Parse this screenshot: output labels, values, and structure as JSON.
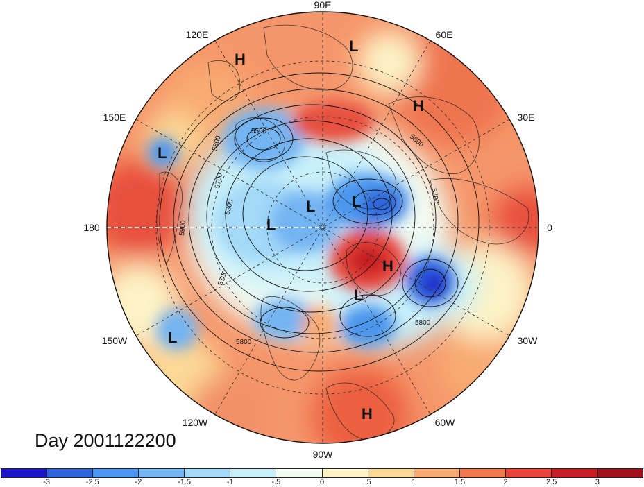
{
  "title": "Day 2001122200",
  "longitude_labels": [
    {
      "id": "lon-90e",
      "text": "90E"
    },
    {
      "id": "lon-120e",
      "text": "120E"
    },
    {
      "id": "lon-60e",
      "text": "60E"
    },
    {
      "id": "lon-150e",
      "text": "150E"
    },
    {
      "id": "lon-30e",
      "text": "30E"
    },
    {
      "id": "lon-180",
      "text": "180"
    },
    {
      "id": "lon-0",
      "text": "0"
    },
    {
      "id": "lon-150w",
      "text": "150W"
    },
    {
      "id": "lon-30w",
      "text": "30W"
    },
    {
      "id": "lon-120w",
      "text": "120W"
    },
    {
      "id": "lon-60w",
      "text": "60W"
    },
    {
      "id": "lon-90w",
      "text": "90W"
    }
  ],
  "pressure_centers": [
    {
      "id": "h-siberia",
      "text": "H"
    },
    {
      "id": "l-arctic-east",
      "text": "L"
    },
    {
      "id": "h-europe-east",
      "text": "H"
    },
    {
      "id": "l-pacific-west",
      "text": "L"
    },
    {
      "id": "l-polar-1",
      "text": "L"
    },
    {
      "id": "l-polar-2",
      "text": "L"
    },
    {
      "id": "l-polar-3",
      "text": "L"
    },
    {
      "id": "h-greenland",
      "text": "H"
    },
    {
      "id": "l-atlantic",
      "text": "L"
    },
    {
      "id": "l-pacific-east",
      "text": "L"
    },
    {
      "id": "h-south-america",
      "text": "H"
    }
  ],
  "contour_labels": [
    {
      "id": "c5500",
      "text": "5500"
    },
    {
      "id": "c5800a",
      "text": "5800"
    },
    {
      "id": "c5700a",
      "text": "5700"
    },
    {
      "id": "c5300",
      "text": "5300"
    },
    {
      "id": "c5900",
      "text": "5900"
    },
    {
      "id": "c5700b",
      "text": "5700"
    },
    {
      "id": "c5800b",
      "text": "5800"
    },
    {
      "id": "c5800c",
      "text": "5800"
    },
    {
      "id": "c5800d",
      "text": "5800"
    },
    {
      "id": "c5700c",
      "text": "5700"
    }
  ],
  "colorbar": {
    "colors": [
      "#1a14c8",
      "#2d64dc",
      "#4b96ee",
      "#73b4f2",
      "#a2d8f8",
      "#c8f0fa",
      "#f2fbf2",
      "#fdf3c6",
      "#fcd896",
      "#f8aa72",
      "#f2784e",
      "#e8443a",
      "#c61c24",
      "#a0101c"
    ],
    "labels": [
      "-3",
      "-2.5",
      "-2",
      "-1.5",
      "-1",
      "-.5",
      "0",
      ".5",
      "1",
      "1.5",
      "2",
      "2.5",
      "3"
    ]
  }
}
